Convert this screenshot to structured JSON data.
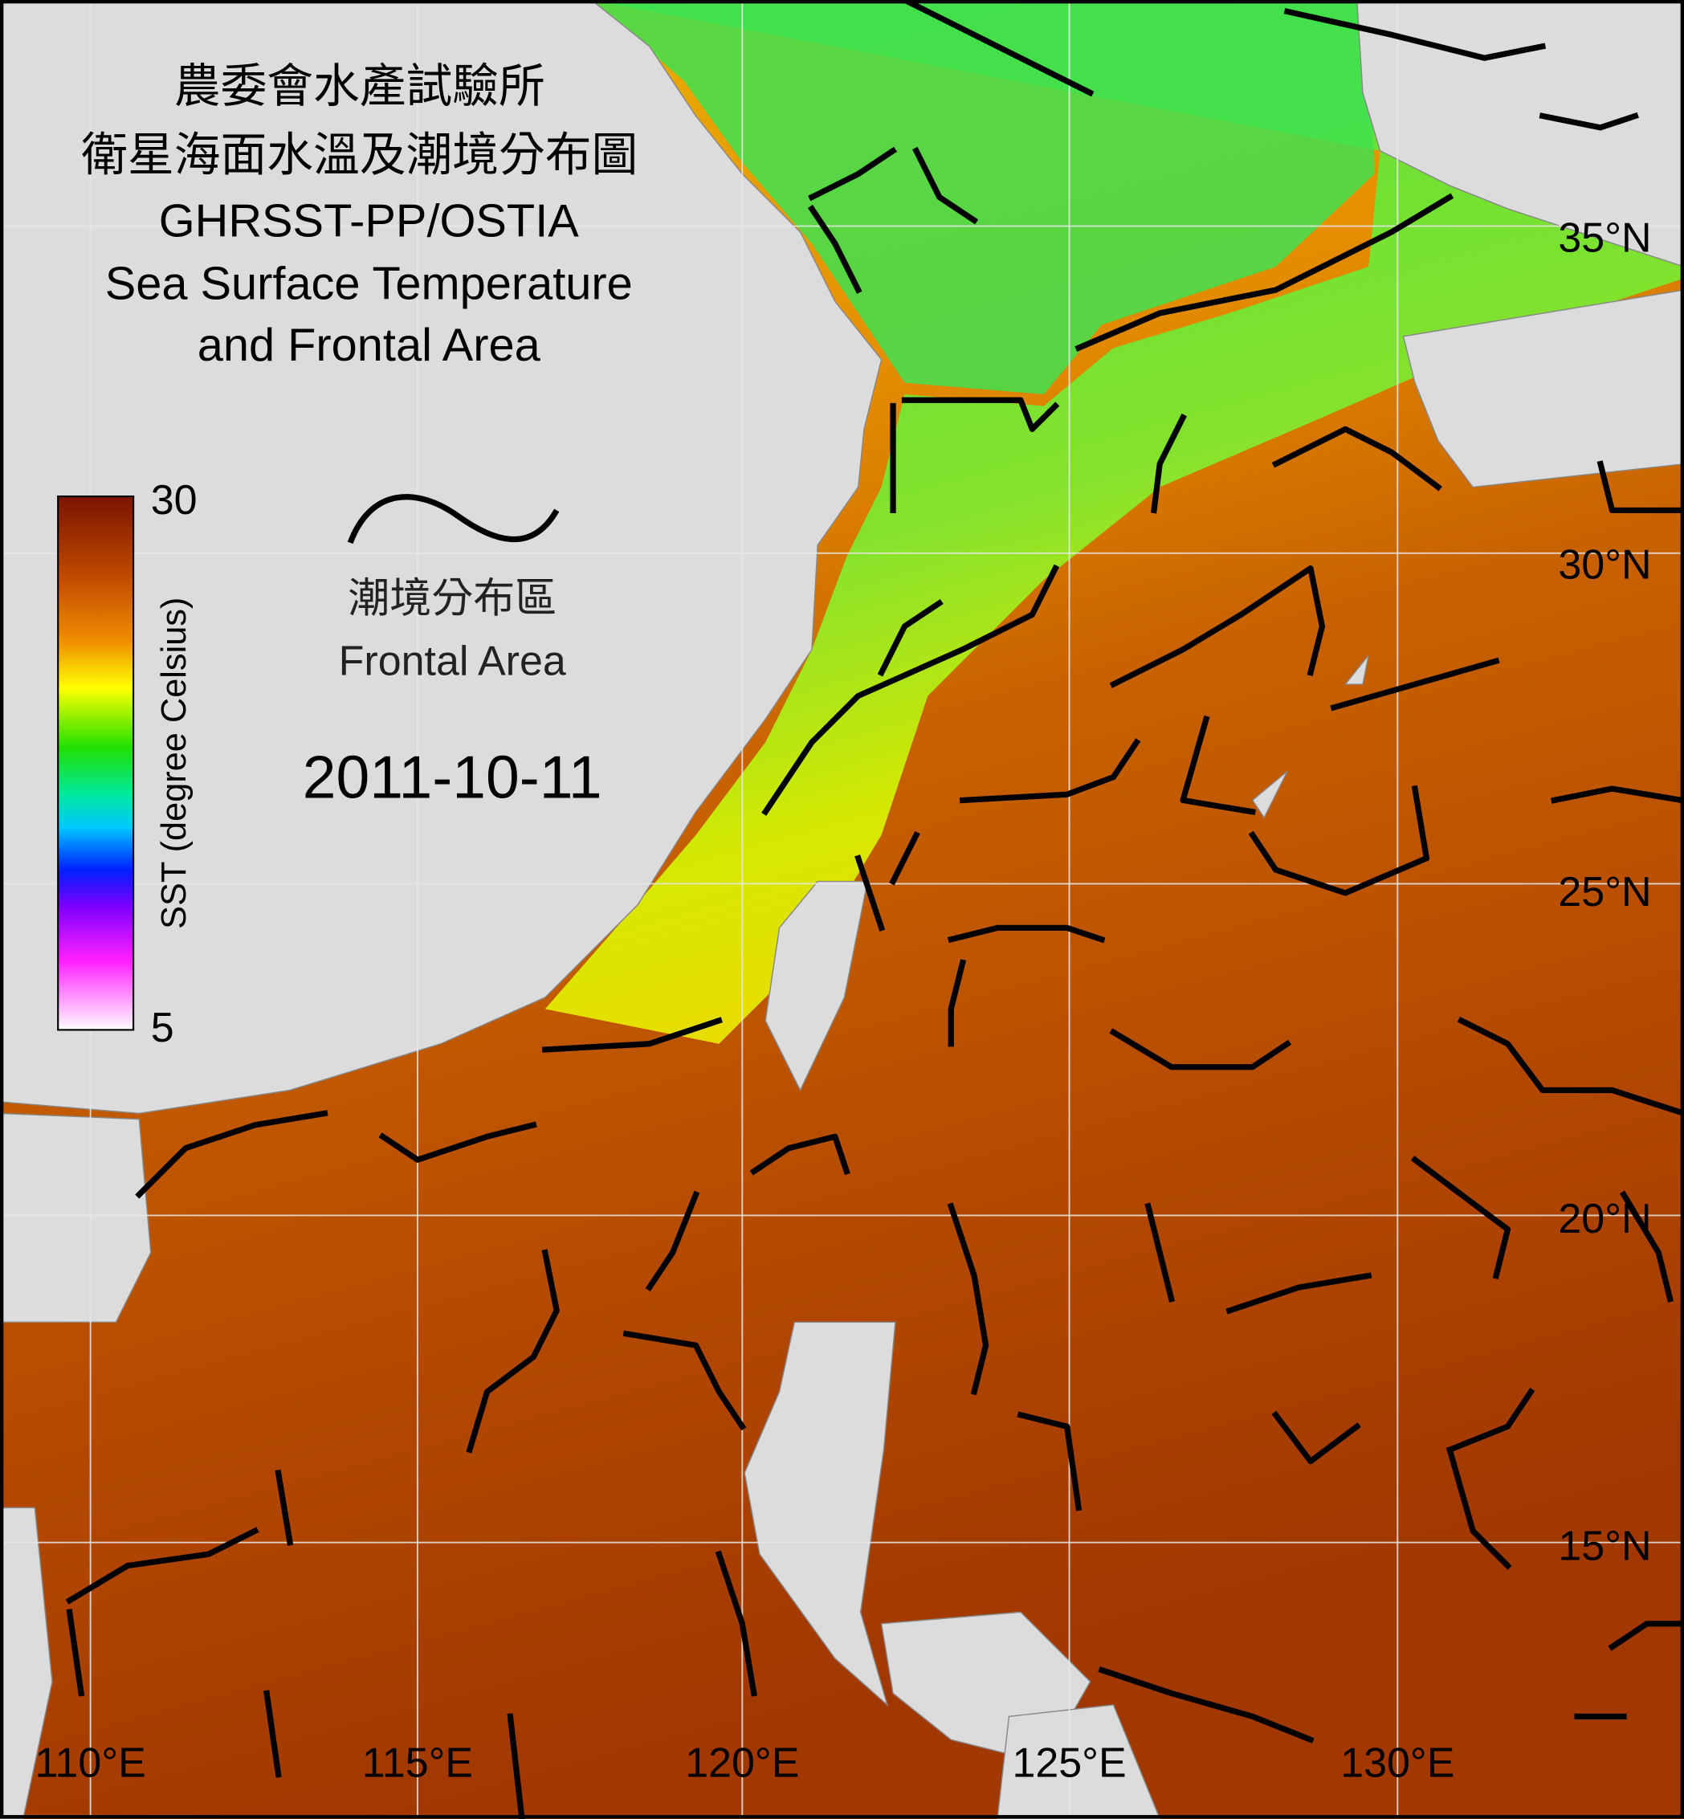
{
  "title": {
    "lines": [
      "農委會水產試驗所",
      "衛星海面水溫及潮境分布圖",
      "GHRSST-PP/OSTIA",
      "Sea Surface Temperature",
      "and Frontal Area"
    ]
  },
  "colorbar": {
    "max_label": "30",
    "min_label": "5",
    "label": "SST (degree Celsius)"
  },
  "legend": {
    "label_zh": "潮境分布區",
    "label_en": "Frontal Area"
  },
  "date": "2011-10-11",
  "lat_labels": [
    "35°N",
    "30°N",
    "25°N",
    "20°N",
    "15°N"
  ],
  "lon_labels": [
    "110°E",
    "115°E",
    "120°E",
    "125°E",
    "130°E"
  ]
}
